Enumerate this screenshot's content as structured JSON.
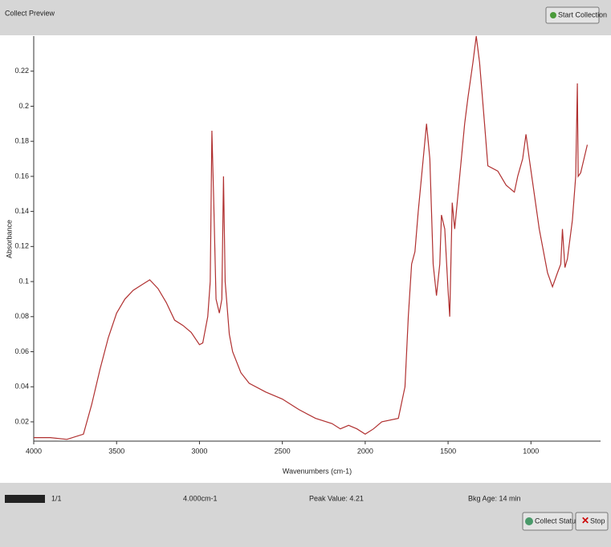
{
  "header": {
    "title": "Collect Preview",
    "button": "Start Collection"
  },
  "chart_data": {
    "type": "line",
    "x_label": "Wavenumbers (cm-1)",
    "y_label": "Absorbance",
    "x": [
      4000,
      3900,
      3800,
      3700,
      3650,
      3600,
      3550,
      3500,
      3450,
      3400,
      3350,
      3300,
      3250,
      3200,
      3150,
      3100,
      3050,
      3000,
      2980,
      2950,
      2935,
      2925,
      2915,
      2900,
      2880,
      2865,
      2855,
      2845,
      2820,
      2800,
      2750,
      2700,
      2600,
      2500,
      2400,
      2300,
      2200,
      2150,
      2100,
      2050,
      2000,
      1950,
      1900,
      1800,
      1760,
      1740,
      1720,
      1700,
      1680,
      1650,
      1630,
      1610,
      1590,
      1570,
      1550,
      1540,
      1520,
      1500,
      1490,
      1475,
      1460,
      1440,
      1400,
      1380,
      1350,
      1330,
      1310,
      1280,
      1260,
      1200,
      1150,
      1100,
      1080,
      1050,
      1030,
      1010,
      980,
      950,
      900,
      870,
      840,
      820,
      810,
      795,
      780,
      750,
      730,
      720,
      715,
      700,
      680,
      660
    ],
    "values": [
      0.011,
      0.011,
      0.01,
      0.013,
      0.03,
      0.05,
      0.068,
      0.082,
      0.09,
      0.095,
      0.098,
      0.101,
      0.096,
      0.088,
      0.078,
      0.075,
      0.071,
      0.064,
      0.065,
      0.08,
      0.1,
      0.186,
      0.15,
      0.09,
      0.082,
      0.09,
      0.16,
      0.1,
      0.07,
      0.06,
      0.048,
      0.042,
      0.037,
      0.033,
      0.027,
      0.022,
      0.019,
      0.016,
      0.018,
      0.016,
      0.013,
      0.016,
      0.02,
      0.022,
      0.04,
      0.08,
      0.11,
      0.117,
      0.14,
      0.17,
      0.19,
      0.17,
      0.11,
      0.092,
      0.11,
      0.138,
      0.13,
      0.095,
      0.08,
      0.145,
      0.13,
      0.15,
      0.19,
      0.205,
      0.225,
      0.24,
      0.225,
      0.19,
      0.166,
      0.163,
      0.155,
      0.151,
      0.16,
      0.17,
      0.184,
      0.17,
      0.15,
      0.13,
      0.105,
      0.097,
      0.105,
      0.11,
      0.13,
      0.108,
      0.113,
      0.135,
      0.16,
      0.213,
      0.16,
      0.162,
      0.17,
      0.178
    ],
    "color": "#b03030",
    "xlim": [
      4000,
      580
    ],
    "xticks": [
      4000,
      3500,
      3000,
      2500,
      2000,
      1500,
      1000
    ],
    "ylim": [
      0.009,
      0.24
    ],
    "yticks": [
      0.02,
      0.04,
      0.06,
      0.08,
      0.1,
      0.12,
      0.14,
      0.16,
      0.18,
      0.2,
      0.22
    ]
  },
  "status": {
    "scans": "1/1",
    "resolution": "4.000cm-1",
    "peak": "Peak Value: 4.21",
    "bkg_age": "Bkg Age: 14 min"
  },
  "buttons": {
    "collect_status": "Collect Status",
    "stop": "Stop"
  }
}
